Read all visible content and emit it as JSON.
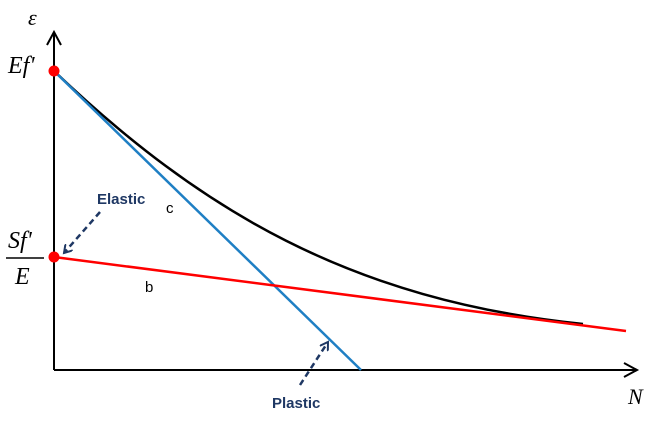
{
  "axes": {
    "y_label": "ε",
    "x_label": "N"
  },
  "y_ticks": {
    "upper": "Ef'",
    "mid_numerator": "Sf'",
    "mid_denominator": "E"
  },
  "annotations": {
    "elastic": "Elastic",
    "plastic": "Plastic",
    "curve_c": "c",
    "line_b": "b"
  },
  "colors": {
    "axis": "#000000",
    "total_curve": "#000000",
    "plastic_line": "#1f7fc4",
    "elastic_line": "#ff0000",
    "points": "#ff0000",
    "arrow_text": "#1f3864"
  }
}
